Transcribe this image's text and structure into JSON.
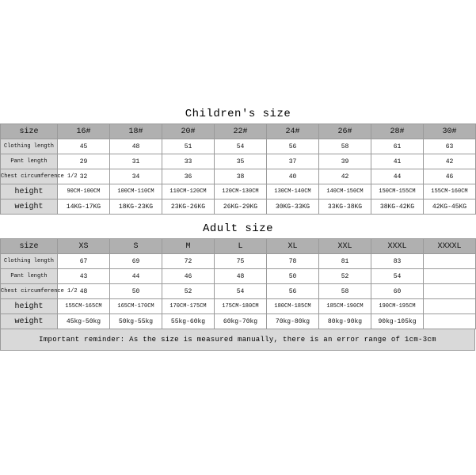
{
  "children": {
    "caption": "Children's size",
    "headerLabel": "size",
    "headers": [
      "16#",
      "18#",
      "20#",
      "22#",
      "24#",
      "26#",
      "28#",
      "30#"
    ],
    "rows": [
      {
        "label": "Clothing length",
        "style": "label",
        "cells": [
          "45",
          "48",
          "51",
          "54",
          "56",
          "58",
          "61",
          "63"
        ],
        "cellStyle": "val"
      },
      {
        "label": "Pant length",
        "style": "label",
        "cells": [
          "29",
          "31",
          "33",
          "35",
          "37",
          "39",
          "41",
          "42"
        ],
        "cellStyle": "val"
      },
      {
        "label": "Chest circumference 1/2",
        "style": "label",
        "cells": [
          "32",
          "34",
          "36",
          "38",
          "40",
          "42",
          "44",
          "46"
        ],
        "cellStyle": "val"
      },
      {
        "label": "height",
        "style": "labelBig",
        "cells": [
          "90CM-100CM",
          "100CM-110CM",
          "110CM-120CM",
          "120CM-130CM",
          "130CM-140CM",
          "140CM-150CM",
          "150CM-155CM",
          "155CM-160CM"
        ],
        "cellStyle": "valH"
      },
      {
        "label": "weight",
        "style": "labelBig",
        "cells": [
          "14KG-17KG",
          "18KG-23KG",
          "23KG-26KG",
          "26KG-29KG",
          "30KG-33KG",
          "33KG-38KG",
          "38KG-42KG",
          "42KG-45KG"
        ],
        "cellStyle": "val"
      }
    ],
    "colors": {
      "headerBg": "#b0b0b0",
      "labelBg": "#d9d9d9",
      "cellBg": "#ffffff",
      "border": "#9a9a9a"
    }
  },
  "adult": {
    "caption": "Adult size",
    "headerLabel": "size",
    "headers": [
      "XS",
      "S",
      "M",
      "L",
      "XL",
      "XXL",
      "XXXL",
      "XXXXL"
    ],
    "rows": [
      {
        "label": "Clothing length",
        "style": "label",
        "cells": [
          "67",
          "69",
          "72",
          "75",
          "78",
          "81",
          "83",
          ""
        ],
        "cellStyle": "val"
      },
      {
        "label": "Pant length",
        "style": "label",
        "cells": [
          "43",
          "44",
          "46",
          "48",
          "50",
          "52",
          "54",
          ""
        ],
        "cellStyle": "val"
      },
      {
        "label": "Chest circumference 1/2",
        "style": "label",
        "cells": [
          "48",
          "50",
          "52",
          "54",
          "56",
          "58",
          "60",
          ""
        ],
        "cellStyle": "val"
      },
      {
        "label": "height",
        "style": "labelBig",
        "cells": [
          "155CM-165CM",
          "165CM-170CM",
          "170CM-175CM",
          "175CM-180CM",
          "180CM-185CM",
          "185CM-190CM",
          "190CM-195CM",
          ""
        ],
        "cellStyle": "valH"
      },
      {
        "label": "weight",
        "style": "labelBig",
        "cells": [
          "45kg-50kg",
          "50kg-55kg",
          "55kg-60kg",
          "60kg-70kg",
          "70kg-80kg",
          "80kg-90kg",
          "90kg-105kg",
          ""
        ],
        "cellStyle": "val"
      }
    ],
    "colors": {
      "headerBg": "#b0b0b0",
      "labelBg": "#d9d9d9",
      "cellBg": "#ffffff",
      "border": "#9a9a9a"
    }
  },
  "reminder": "Important reminder: As the size is measured manually, there is an error range of 1cm-3cm"
}
